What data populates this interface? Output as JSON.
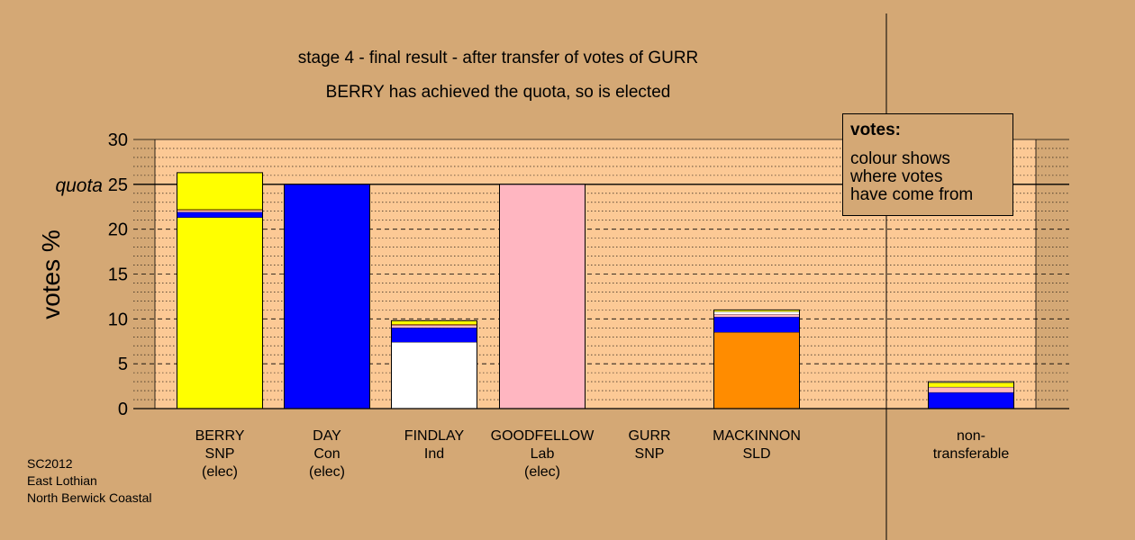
{
  "title": "stage 4 - final result - after transfer of votes of GURR",
  "subtitle": "BERRY has achieved the quota, so is elected",
  "legend": {
    "title": "votes:",
    "text": [
      "colour shows",
      "where votes",
      "have come from"
    ]
  },
  "footer": [
    "SC2012",
    "East Lothian",
    "North Berwick Coastal"
  ],
  "chart_data": {
    "type": "bar",
    "stacked": true,
    "ylabel": "votes %",
    "xlabel": "",
    "ylim": [
      0,
      30
    ],
    "yticks": [
      0,
      5,
      10,
      15,
      20,
      25,
      30
    ],
    "quota": 25,
    "quota_label": "quota",
    "grid": true,
    "categories": [
      {
        "name": "BERRY",
        "party": "SNP",
        "status": "(elec)"
      },
      {
        "name": "DAY",
        "party": "Con",
        "status": "(elec)"
      },
      {
        "name": "FINDLAY",
        "party": "Ind",
        "status": ""
      },
      {
        "name": "GOODFELLOW",
        "party": "Lab",
        "status": "(elec)"
      },
      {
        "name": "GURR",
        "party": "SNP",
        "status": ""
      },
      {
        "name": "MACKINNON",
        "party": "SLD",
        "status": ""
      },
      {
        "name": "non-",
        "party": "transferable",
        "status": ""
      }
    ],
    "bars": [
      [
        {
          "color": "#ffff00",
          "value": 21.3
        },
        {
          "color": "#0000ff",
          "value": 0.6
        },
        {
          "color": "#ffb6c1",
          "value": 0.2
        },
        {
          "color": "#ff8c00",
          "value": 0.1
        },
        {
          "color": "#ffff00",
          "value": 4.1
        }
      ],
      [
        {
          "color": "#0000ff",
          "value": 25.0
        }
      ],
      [
        {
          "color": "#ffffff",
          "value": 7.4
        },
        {
          "color": "#0000ff",
          "value": 1.6
        },
        {
          "color": "#ffb6c1",
          "value": 0.3
        },
        {
          "color": "#ff8c00",
          "value": 0.1
        },
        {
          "color": "#ffff00",
          "value": 0.4
        }
      ],
      [
        {
          "color": "#ffb6c1",
          "value": 25.0
        }
      ],
      [],
      [
        {
          "color": "#ff8c00",
          "value": 8.5
        },
        {
          "color": "#0000ff",
          "value": 1.7
        },
        {
          "color": "#ffb6c1",
          "value": 0.3
        },
        {
          "color": "#ffffff",
          "value": 0.3
        },
        {
          "color": "#ffff00",
          "value": 0.2
        }
      ],
      [
        {
          "color": "#0000ff",
          "value": 1.8
        },
        {
          "color": "#ffb6c1",
          "value": 0.6
        },
        {
          "color": "#ffff00",
          "value": 0.5
        },
        {
          "color": "#ffffff",
          "value": 0.1
        }
      ]
    ]
  }
}
